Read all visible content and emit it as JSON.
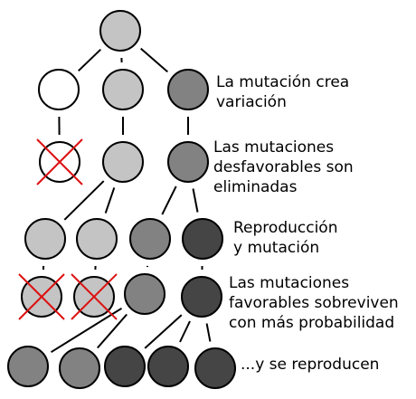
{
  "colors": {
    "background": "#ffffff",
    "stroke": "#000000",
    "cross": "#dd1111",
    "shades": {
      "white": "#ffffff",
      "light": "#c4c4c4",
      "medium": "#828282",
      "dark": "#454545"
    }
  },
  "labels": {
    "step1": [
      "La mutación crea",
      "variación"
    ],
    "step2": [
      "Las mutaciones",
      "desfavorables son",
      "eliminadas"
    ],
    "step3": [
      "Reproducción",
      "y mutación"
    ],
    "step4": [
      "Las mutaciones",
      "favorables sobreviven",
      "con más probabilidad"
    ],
    "step5": [
      "...y se reproducen"
    ]
  },
  "nodes": [
    {
      "id": "n-root",
      "shade": "light",
      "eliminated": false
    },
    {
      "id": "n-var-white",
      "shade": "white",
      "eliminated": false
    },
    {
      "id": "n-var-light",
      "shade": "light",
      "eliminated": false
    },
    {
      "id": "n-var-medium",
      "shade": "medium",
      "eliminated": false
    },
    {
      "id": "n-sel-white",
      "shade": "white",
      "eliminated": true
    },
    {
      "id": "n-sel-light",
      "shade": "light",
      "eliminated": false
    },
    {
      "id": "n-sel-medium",
      "shade": "medium",
      "eliminated": false
    },
    {
      "id": "n-rep-light-a",
      "shade": "light",
      "eliminated": false
    },
    {
      "id": "n-rep-light-b",
      "shade": "light",
      "eliminated": false
    },
    {
      "id": "n-rep-medium",
      "shade": "medium",
      "eliminated": false
    },
    {
      "id": "n-rep-dark",
      "shade": "dark",
      "eliminated": false
    },
    {
      "id": "n-fav-light-a",
      "shade": "light",
      "eliminated": true
    },
    {
      "id": "n-fav-light-b",
      "shade": "light",
      "eliminated": true
    },
    {
      "id": "n-fav-medium",
      "shade": "medium",
      "eliminated": false
    },
    {
      "id": "n-fav-dark",
      "shade": "dark",
      "eliminated": false
    },
    {
      "id": "n-off-medium-a",
      "shade": "medium",
      "eliminated": false
    },
    {
      "id": "n-off-medium-b",
      "shade": "medium",
      "eliminated": false
    },
    {
      "id": "n-off-dark-a",
      "shade": "dark",
      "eliminated": false
    },
    {
      "id": "n-off-dark-b",
      "shade": "dark",
      "eliminated": false
    },
    {
      "id": "n-off-dark-c",
      "shade": "dark",
      "eliminated": false
    }
  ],
  "edges": [
    [
      "n-root",
      "n-var-white"
    ],
    [
      "n-root",
      "n-var-light"
    ],
    [
      "n-root",
      "n-var-medium"
    ],
    [
      "n-var-white",
      "n-sel-white"
    ],
    [
      "n-var-light",
      "n-sel-light"
    ],
    [
      "n-var-medium",
      "n-sel-medium"
    ],
    [
      "n-sel-light",
      "n-rep-light-a"
    ],
    [
      "n-sel-light",
      "n-rep-light-b"
    ],
    [
      "n-sel-medium",
      "n-rep-medium"
    ],
    [
      "n-sel-medium",
      "n-rep-dark"
    ],
    [
      "n-rep-light-a",
      "n-fav-light-a"
    ],
    [
      "n-rep-light-b",
      "n-fav-light-b"
    ],
    [
      "n-rep-medium",
      "n-fav-medium"
    ],
    [
      "n-rep-dark",
      "n-fav-dark"
    ],
    [
      "n-fav-medium",
      "n-off-medium-a"
    ],
    [
      "n-fav-medium",
      "n-off-medium-b"
    ],
    [
      "n-fav-dark",
      "n-off-dark-a"
    ],
    [
      "n-fav-dark",
      "n-off-dark-b"
    ],
    [
      "n-fav-dark",
      "n-off-dark-c"
    ]
  ]
}
